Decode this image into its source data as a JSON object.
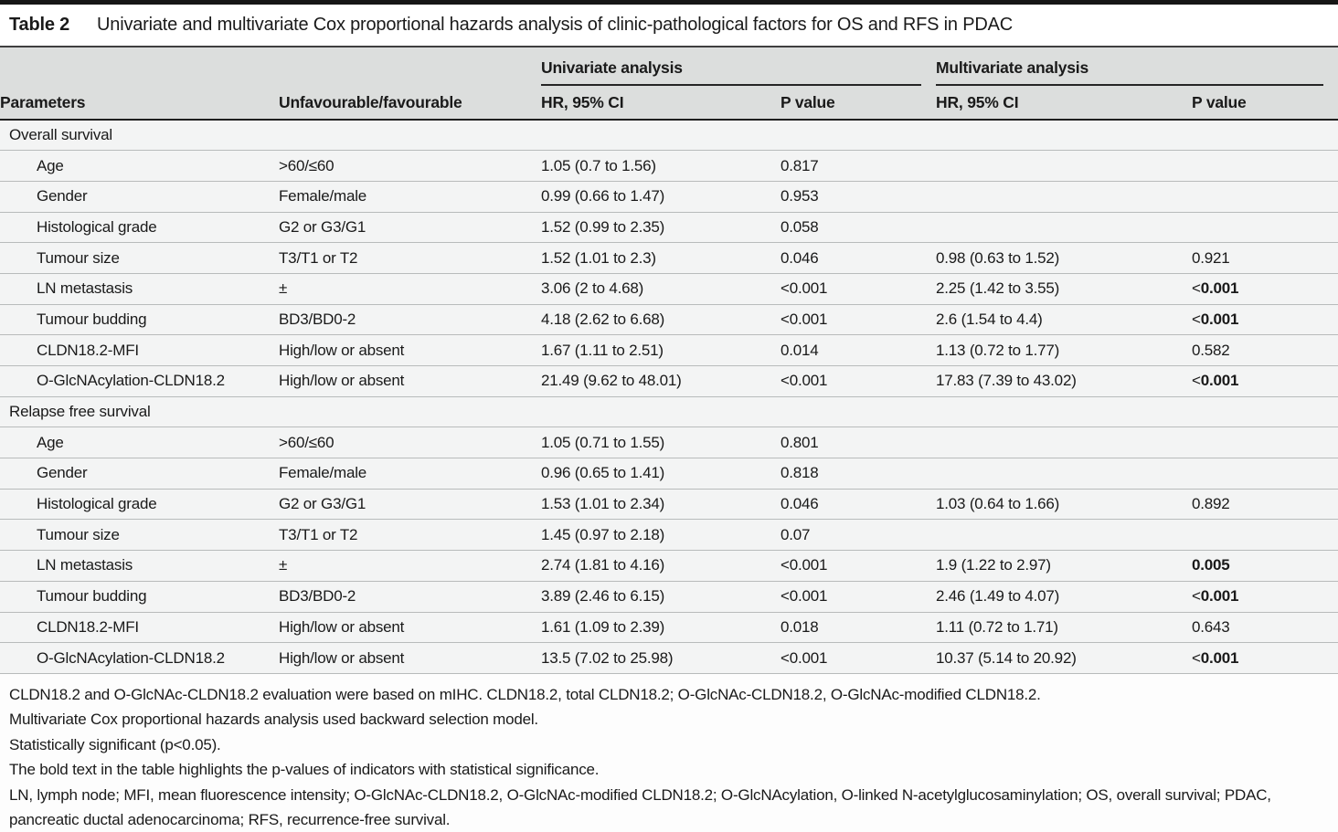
{
  "caption": {
    "label": "Table 2",
    "title": "Univariate and multivariate Cox proportional hazards analysis of clinic-pathological factors for OS and RFS in PDAC"
  },
  "header": {
    "univariate_group": "Univariate analysis",
    "multivariate_group": "Multivariate analysis",
    "parameters": "Parameters",
    "unfavourable": "Unfavourable/favourable",
    "hr_ci": "HR, 95% CI",
    "p_value": "P value"
  },
  "sections": [
    {
      "name": "Overall survival",
      "rows": [
        {
          "parameter": "Age",
          "unfavourable": ">60/≤60",
          "uni_hr": "1.05 (0.7 to 1.56)",
          "uni_p": "0.817",
          "multi_hr": "",
          "multi_p": "",
          "multi_p_bold": false
        },
        {
          "parameter": "Gender",
          "unfavourable": "Female/male",
          "uni_hr": "0.99 (0.66 to 1.47)",
          "uni_p": "0.953",
          "multi_hr": "",
          "multi_p": "",
          "multi_p_bold": false
        },
        {
          "parameter": "Histological grade",
          "unfavourable": "G2 or G3/G1",
          "uni_hr": "1.52 (0.99 to 2.35)",
          "uni_p": "0.058",
          "multi_hr": "",
          "multi_p": "",
          "multi_p_bold": false
        },
        {
          "parameter": "Tumour size",
          "unfavourable": "T3/T1 or T2",
          "uni_hr": "1.52 (1.01 to 2.3)",
          "uni_p": "0.046",
          "multi_hr": "0.98 (0.63 to 1.52)",
          "multi_p": "0.921",
          "multi_p_bold": false
        },
        {
          "parameter": "LN metastasis",
          "unfavourable": "±",
          "uni_hr": "3.06 (2 to 4.68)",
          "uni_p": "<0.001",
          "multi_hr": "2.25 (1.42 to 3.55)",
          "multi_p": "<0.001",
          "multi_p_bold": true
        },
        {
          "parameter": "Tumour budding",
          "unfavourable": "BD3/BD0-2",
          "uni_hr": "4.18 (2.62 to 6.68)",
          "uni_p": "<0.001",
          "multi_hr": "2.6 (1.54 to 4.4)",
          "multi_p": "<0.001",
          "multi_p_bold": true
        },
        {
          "parameter": "CLDN18.2-MFI",
          "unfavourable": "High/low or absent",
          "uni_hr": "1.67 (1.11 to 2.51)",
          "uni_p": "0.014",
          "multi_hr": "1.13 (0.72 to 1.77)",
          "multi_p": "0.582",
          "multi_p_bold": false
        },
        {
          "parameter": "O-GlcNAcylation-CLDN18.2",
          "unfavourable": "High/low or absent",
          "uni_hr": "21.49 (9.62 to 48.01)",
          "uni_p": "<0.001",
          "multi_hr": "17.83 (7.39 to 43.02)",
          "multi_p": "<0.001",
          "multi_p_bold": true
        }
      ]
    },
    {
      "name": "Relapse free survival",
      "rows": [
        {
          "parameter": "Age",
          "unfavourable": ">60/≤60",
          "uni_hr": "1.05 (0.71 to 1.55)",
          "uni_p": "0.801",
          "multi_hr": "",
          "multi_p": "",
          "multi_p_bold": false
        },
        {
          "parameter": "Gender",
          "unfavourable": "Female/male",
          "uni_hr": "0.96 (0.65 to 1.41)",
          "uni_p": "0.818",
          "multi_hr": "",
          "multi_p": "",
          "multi_p_bold": false
        },
        {
          "parameter": "Histological grade",
          "unfavourable": "G2 or G3/G1",
          "uni_hr": "1.53 (1.01 to 2.34)",
          "uni_p": "0.046",
          "multi_hr": "1.03 (0.64 to 1.66)",
          "multi_p": "0.892",
          "multi_p_bold": false
        },
        {
          "parameter": "Tumour size",
          "unfavourable": "T3/T1 or T2",
          "uni_hr": "1.45 (0.97 to 2.18)",
          "uni_p": "0.07",
          "multi_hr": "",
          "multi_p": "",
          "multi_p_bold": false
        },
        {
          "parameter": "LN metastasis",
          "unfavourable": "±",
          "uni_hr": "2.74 (1.81 to 4.16)",
          "uni_p": "<0.001",
          "multi_hr": "1.9 (1.22 to 2.97)",
          "multi_p": "0.005",
          "multi_p_bold": true
        },
        {
          "parameter": "Tumour budding",
          "unfavourable": "BD3/BD0-2",
          "uni_hr": "3.89 (2.46 to 6.15)",
          "uni_p": "<0.001",
          "multi_hr": "2.46 (1.49 to 4.07)",
          "multi_p": "<0.001",
          "multi_p_bold": true
        },
        {
          "parameter": "CLDN18.2-MFI",
          "unfavourable": "High/low or absent",
          "uni_hr": "1.61 (1.09 to 2.39)",
          "uni_p": "0.018",
          "multi_hr": "1.11 (0.72 to 1.71)",
          "multi_p": "0.643",
          "multi_p_bold": false
        },
        {
          "parameter": "O-GlcNAcylation-CLDN18.2",
          "unfavourable": "High/low or absent",
          "uni_hr": "13.5 (7.02 to 25.98)",
          "uni_p": "<0.001",
          "multi_hr": "10.37 (5.14 to 20.92)",
          "multi_p": "<0.001",
          "multi_p_bold": true
        }
      ]
    }
  ],
  "footnotes": [
    "CLDN18.2 and O-GlcNAc-CLDN18.2 evaluation were based on mIHC. CLDN18.2, total CLDN18.2; O-GlcNAc-CLDN18.2, O-GlcNAc-modified CLDN18.2.",
    "Multivariate Cox proportional hazards analysis used backward selection model.",
    "Statistically significant (p<0.05).",
    "The bold text in the table highlights the p-values of indicators with statistical significance.",
    "LN, lymph node; MFI, mean fluorescence intensity; O-GlcNAc-CLDN18.2, O-GlcNAc-modified CLDN18.2; O-GlcNAcylation, O-linked N-acetylglucosaminylation; OS, overall survival; PDAC, pancreatic ductal adenocarcinoma; RFS, recurrence-free survival."
  ],
  "colors": {
    "top_bar": "#161616",
    "header_bg": "#dcdedd",
    "body_bg": "#f3f4f4",
    "rule_dark": "#252525",
    "row_divider": "#b8bbbb",
    "text": "#1a1a1a"
  }
}
